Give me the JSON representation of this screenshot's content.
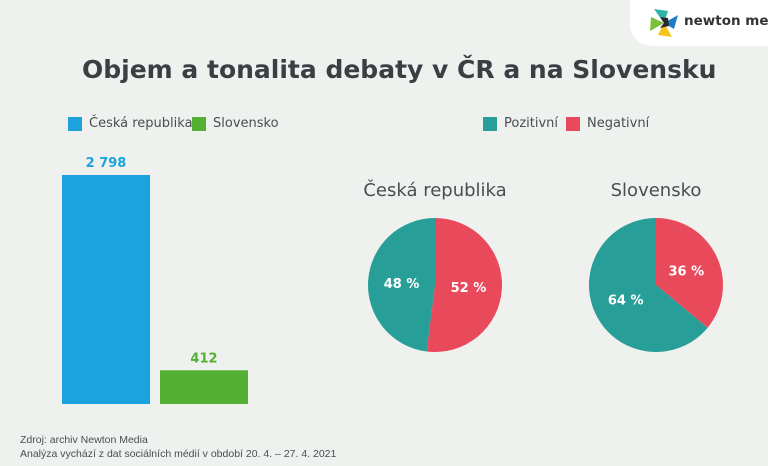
{
  "brand": {
    "logo_text": "newton media",
    "colors": {
      "teal": "#2eb5a8",
      "yellow": "#f6c41a",
      "blue": "#1e7ec8",
      "green": "#7bbf3a",
      "dark": "#2a2a2a"
    }
  },
  "title": "Objem a tonalita debaty v ČR a na Slovensku",
  "legend_bar": [
    {
      "label": "Česká republika",
      "color": "#1ba3de"
    },
    {
      "label": "Slovensko",
      "color": "#54b033"
    }
  ],
  "legend_pie": [
    {
      "label": "Pozitivní",
      "color": "#279f98"
    },
    {
      "label": "Negativní",
      "color": "#e84a5b"
    }
  ],
  "chart_data": [
    {
      "type": "bar",
      "categories": [
        "Česká republika",
        "Slovensko"
      ],
      "values": [
        2798,
        412
      ],
      "value_labels": [
        "2 798",
        "412"
      ],
      "colors": [
        "#1ba3de",
        "#54b033"
      ],
      "ylim": [
        0,
        2798
      ],
      "grid": false
    },
    {
      "type": "pie",
      "title": "Česká republika",
      "labels": [
        "Pozitivní",
        "Negativní"
      ],
      "values": [
        48,
        52
      ],
      "value_labels": [
        "48 %",
        "52 %"
      ],
      "colors": [
        "#279f98",
        "#e84a5b"
      ]
    },
    {
      "type": "pie",
      "title": "Slovensko",
      "labels": [
        "Pozitivní",
        "Negativní"
      ],
      "values": [
        64,
        36
      ],
      "value_labels": [
        "64 %",
        "36 %"
      ],
      "colors": [
        "#279f98",
        "#e84a5b"
      ]
    }
  ],
  "footer": {
    "source": "Zdroj: archiv Newton Media",
    "note": "Analýza vychází z dat sociálních médií v období 20. 4. – 27. 4. 2021"
  }
}
